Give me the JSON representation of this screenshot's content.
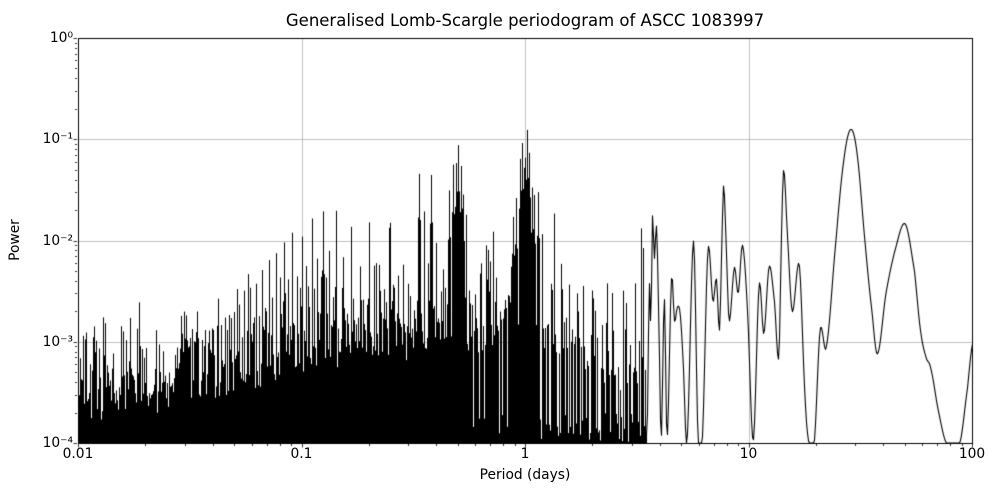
{
  "figure": {
    "title": "Generalised Lomb-Scargle periodogram of ASCC 1083997",
    "xlabel": "Period (days)",
    "ylabel": "Power",
    "background_color": "#ffffff",
    "frame_color": "#000000"
  },
  "chart_data": {
    "type": "line",
    "title": "Generalised Lomb-Scargle periodogram of ASCC 1083997",
    "xlabel": "Period (days)",
    "ylabel": "Power",
    "x_scale": "log",
    "y_scale": "log",
    "xlim": [
      0.01,
      100
    ],
    "ylim": [
      0.0001,
      1
    ],
    "x_ticks": [
      0.01,
      0.1,
      1,
      10,
      100
    ],
    "x_tick_labels": [
      "0.01",
      "0.1",
      "1",
      "10",
      "100"
    ],
    "y_ticks": [
      0.0001,
      0.001,
      0.01,
      0.1,
      1
    ],
    "y_tick_labels": [
      "10⁻⁴",
      "10⁻³",
      "10⁻²",
      "10⁻¹",
      "10⁰"
    ],
    "grid": true,
    "grid_color": "#b0b0b0",
    "line_color": "#000000",
    "main_peaks": [
      {
        "period": 0.33,
        "power": 0.045
      },
      {
        "period": 0.5,
        "power": 0.085
      },
      {
        "period": 1.02,
        "power": 0.12
      },
      {
        "period": 3.7,
        "power": 0.017
      },
      {
        "period": 7.7,
        "power": 0.035
      },
      {
        "period": 14.3,
        "power": 0.05
      },
      {
        "period": 28.5,
        "power": 0.125
      },
      {
        "period": 50.0,
        "power": 0.015
      }
    ],
    "peak_spikes": [
      [
        0.335,
        0.045
      ],
      [
        0.352,
        0.02
      ],
      [
        0.38,
        0.043
      ],
      [
        0.4,
        0.009
      ],
      [
        0.455,
        0.03
      ],
      [
        0.475,
        0.055
      ],
      [
        0.49,
        0.062
      ],
      [
        0.5,
        0.085
      ],
      [
        0.515,
        0.058
      ],
      [
        0.53,
        0.03
      ],
      [
        0.545,
        0.018
      ],
      [
        0.667,
        0.009
      ],
      [
        0.7,
        0.006
      ],
      [
        0.88,
        0.018
      ],
      [
        0.91,
        0.025
      ],
      [
        0.945,
        0.06
      ],
      [
        0.965,
        0.095
      ],
      [
        0.985,
        0.055
      ],
      [
        1.0,
        0.07
      ],
      [
        1.02,
        0.12
      ],
      [
        1.045,
        0.075
      ],
      [
        1.07,
        0.035
      ],
      [
        1.095,
        0.028
      ],
      [
        1.14,
        0.03
      ],
      [
        1.19,
        0.012
      ],
      [
        1.35,
        0.0175
      ],
      [
        1.45,
        0.006
      ],
      [
        1.57,
        0.0035
      ],
      [
        1.81,
        0.0034
      ],
      [
        2.05,
        0.002
      ],
      [
        2.45,
        0.0029
      ],
      [
        2.75,
        0.0033
      ],
      [
        3.1,
        0.004
      ],
      [
        3.3,
        0.013
      ],
      [
        3.38,
        0.008
      ]
    ],
    "alias_comb": {
      "teeth_heights": [
        [
          4,
          0.0148
        ],
        [
          5,
          0.0148
        ],
        [
          6,
          0.0131
        ],
        [
          7,
          0.019
        ],
        [
          8,
          0.019
        ],
        [
          9,
          0.016
        ],
        [
          10,
          0.0105
        ],
        [
          11,
          0.012
        ],
        [
          12,
          0.009
        ],
        [
          13,
          0.0075
        ],
        [
          14,
          0.006
        ],
        [
          15,
          0.005
        ],
        [
          16,
          0.004
        ],
        [
          18,
          0.003
        ],
        [
          20,
          0.002
        ],
        [
          25,
          0.0013
        ],
        [
          30,
          0.001
        ],
        [
          35,
          0.0008
        ]
      ],
      "half_tooth_factor": 0.4,
      "k_min": 4,
      "k_max": 35
    },
    "noise_floor_anchors": [
      [
        0.01,
        0.00028
      ],
      [
        0.02,
        0.00032
      ],
      [
        0.04,
        0.00042
      ],
      [
        0.07,
        0.0006
      ],
      [
        0.1,
        0.0008
      ],
      [
        0.15,
        0.001
      ],
      [
        0.25,
        0.0011
      ],
      [
        0.4,
        0.0013
      ],
      [
        0.6,
        0.00135
      ],
      [
        0.8,
        0.0017
      ],
      [
        1.0,
        0.0021
      ],
      [
        1.3,
        0.0012
      ],
      [
        1.7,
        0.0008
      ],
      [
        2.2,
        0.0006
      ],
      [
        2.8,
        0.0005
      ],
      [
        3.45,
        0.00045
      ]
    ],
    "noise_spread_dex": 0.85,
    "noise_spread_bumps": [
      {
        "center": 1.0,
        "amp": 0.6,
        "sigma_dex": 0.04
      },
      {
        "center": 0.5,
        "amp": 0.45,
        "sigma_dex": 0.03
      },
      {
        "center": 0.335,
        "amp": 0.35,
        "sigma_dex": 0.025
      }
    ],
    "gap_model": {
      "start_period": 0.42,
      "prob_at_1": 0.32,
      "prob_at_end": 0.5
    },
    "dense_range": [
      0.01,
      3.45
    ],
    "smooth_curve_anchors": [
      [
        3.5,
        0.00012
      ],
      [
        3.58,
        0.0035
      ],
      [
        3.64,
        0.0015
      ],
      [
        3.7,
        0.0175
      ],
      [
        3.77,
        0.0066
      ],
      [
        3.86,
        0.0135
      ],
      [
        3.96,
        0.0012
      ],
      [
        4.05,
        0.00011
      ],
      [
        4.18,
        0.0027
      ],
      [
        4.3,
        0.00011
      ],
      [
        4.5,
        0.0042
      ],
      [
        4.64,
        0.0016
      ],
      [
        4.78,
        0.0022
      ],
      [
        4.92,
        0.0019
      ],
      [
        5.08,
        0.0006
      ],
      [
        5.28,
        0.000105
      ],
      [
        5.65,
        0.0099
      ],
      [
        5.92,
        0.000105
      ],
      [
        6.18,
        0.000105
      ],
      [
        6.55,
        0.0079
      ],
      [
        6.9,
        0.0025
      ],
      [
        7.15,
        0.0042
      ],
      [
        7.38,
        0.0013
      ],
      [
        7.55,
        0.008
      ],
      [
        7.7,
        0.035
      ],
      [
        7.92,
        0.008
      ],
      [
        8.15,
        0.0016
      ],
      [
        8.6,
        0.0054
      ],
      [
        8.95,
        0.003
      ],
      [
        9.35,
        0.009
      ],
      [
        9.85,
        0.002
      ],
      [
        10.45,
        0.000105
      ],
      [
        11.1,
        0.0036
      ],
      [
        11.65,
        0.0012
      ],
      [
        12.3,
        0.0055
      ],
      [
        13.0,
        0.0025
      ],
      [
        13.6,
        0.0007
      ],
      [
        14.0,
        0.013
      ],
      [
        14.3,
        0.05
      ],
      [
        14.8,
        0.013
      ],
      [
        15.6,
        0.002
      ],
      [
        16.8,
        0.0057
      ],
      [
        17.8,
        0.0003
      ],
      [
        18.5,
        0.000102
      ],
      [
        19.6,
        0.000102
      ],
      [
        20.8,
        0.0013
      ],
      [
        22.2,
        0.0009
      ],
      [
        24.5,
        0.01
      ],
      [
        26.5,
        0.06
      ],
      [
        28.5,
        0.125
      ],
      [
        30.5,
        0.07
      ],
      [
        33.0,
        0.01
      ],
      [
        35.5,
        0.002
      ],
      [
        37.6,
        0.00076
      ],
      [
        41.0,
        0.003
      ],
      [
        45.0,
        0.008
      ],
      [
        50.0,
        0.0146
      ],
      [
        55.0,
        0.005
      ],
      [
        58.5,
        0.0013
      ],
      [
        62.0,
        0.0007
      ],
      [
        65.0,
        0.00055
      ],
      [
        70.0,
        0.00022
      ],
      [
        76.0,
        0.000102
      ],
      [
        88.0,
        0.000102
      ],
      [
        95.0,
        0.00035
      ],
      [
        100.0,
        0.00095
      ]
    ],
    "random_seed": 7
  }
}
